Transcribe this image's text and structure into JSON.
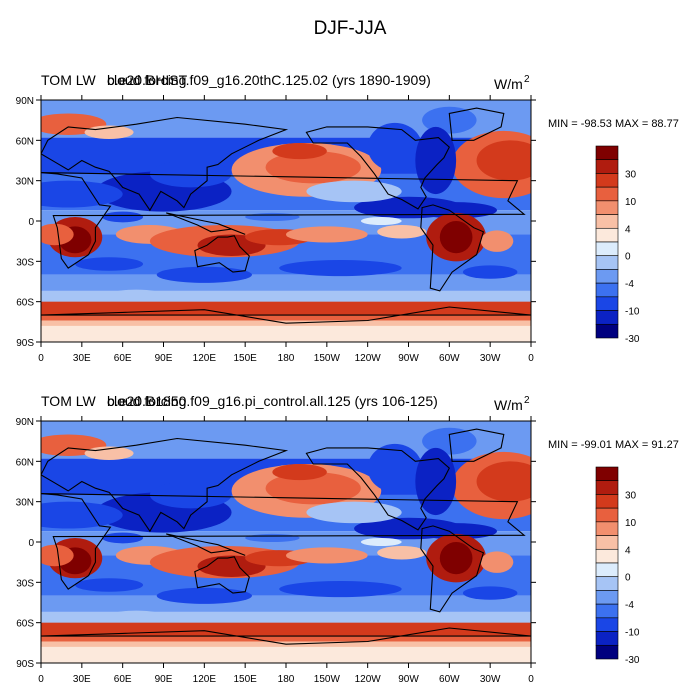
{
  "suptitle": "DJF-JJA",
  "palette": [
    "#00007f",
    "#0b22c4",
    "#1a46e6",
    "#3c71f0",
    "#6c9af2",
    "#a6c4f5",
    "#dcecfc",
    "#fce9dc",
    "#f8c0a6",
    "#f28f6e",
    "#e8603e",
    "#d33a1c",
    "#b01c0f",
    "#7f0000"
  ],
  "colorbar_labels": [
    "30",
    "10",
    "4",
    "0",
    "-4",
    "-10",
    "-30"
  ],
  "lon_ticks": [
    "0",
    "30E",
    "60E",
    "90E",
    "120E",
    "150E",
    "180",
    "150W",
    "120W",
    "90W",
    "60W",
    "30W",
    "0"
  ],
  "lat_ticks": [
    "90N",
    "60N",
    "30N",
    "0",
    "30S",
    "60S",
    "90S"
  ],
  "panels": [
    {
      "title_left": "TOM LW",
      "title_center": "b.e20.BHIST.f09_g16.20thC.125.02 (yrs 1890-1909)",
      "title_center_overlap": "cloud forcing",
      "units": "W/m",
      "units_sup": "2",
      "minmax": "MIN = -98.53 MAX =  88.77"
    },
    {
      "title_left": "TOM LW",
      "title_center": "b.e20.B1850.f09_g16.pi_control.all.125 (yrs 106-125)",
      "title_center_overlap": "cloud forcing",
      "units": "W/m",
      "units_sup": "2",
      "minmax": "MIN = -99.01 MAX =  91.27"
    }
  ]
}
